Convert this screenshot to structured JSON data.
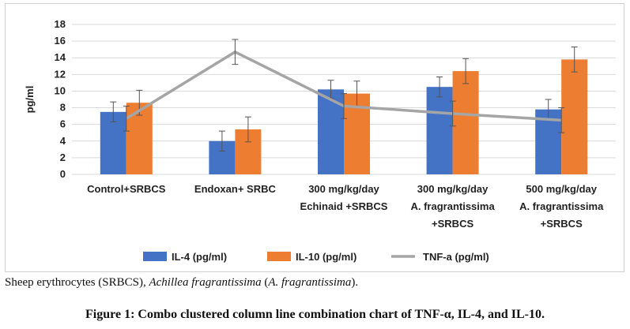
{
  "chart_data": {
    "type": "bar",
    "ylabel": "pg/ml",
    "ylim": [
      0,
      18
    ],
    "yticks": [
      "0",
      "2",
      "4",
      "6",
      "8",
      "10",
      "12",
      "14",
      "16",
      "18"
    ],
    "grid": true,
    "legend_position": "bottom",
    "categories": [
      [
        "Control+SRBCS"
      ],
      [
        "Endoxan+ SRBC"
      ],
      [
        "300 mg/kg/day",
        "Echinaid +SRBCS"
      ],
      [
        "300 mg/kg/day",
        "A. fragrantissima",
        "+SRBCS"
      ],
      [
        "500 mg/kg/day",
        "A. fragrantissima",
        "+SRBCS"
      ]
    ],
    "series": [
      {
        "name": "IL-4 (pg/ml)",
        "type": "bar",
        "color": "#4472C4",
        "values": [
          7.5,
          4.0,
          10.2,
          10.5,
          7.8
        ],
        "errors": [
          1.2,
          1.2,
          1.1,
          1.2,
          1.2
        ]
      },
      {
        "name": "IL-10 (pg/ml)",
        "type": "bar",
        "color": "#ED7D31",
        "values": [
          8.6,
          5.4,
          9.7,
          12.4,
          13.8
        ],
        "errors": [
          1.5,
          1.5,
          1.5,
          1.5,
          1.5
        ]
      },
      {
        "name": "TNF-a (pg/ml)",
        "type": "line",
        "color": "#A5A5A5",
        "values": [
          6.7,
          14.7,
          8.2,
          7.3,
          6.5
        ],
        "errors": [
          1.5,
          1.5,
          1.5,
          1.5,
          1.5
        ]
      }
    ]
  },
  "caption": {
    "prefix": "Sheep erythrocytes (SRBCS), ",
    "italic1": "Achillea fragrantissima",
    "middle": " (",
    "italic2": "A. fragrantissima",
    "suffix": ")."
  },
  "figure_title": "Figure 1: Combo clustered column line combination chart of TNF-α, IL-4, and IL-10."
}
